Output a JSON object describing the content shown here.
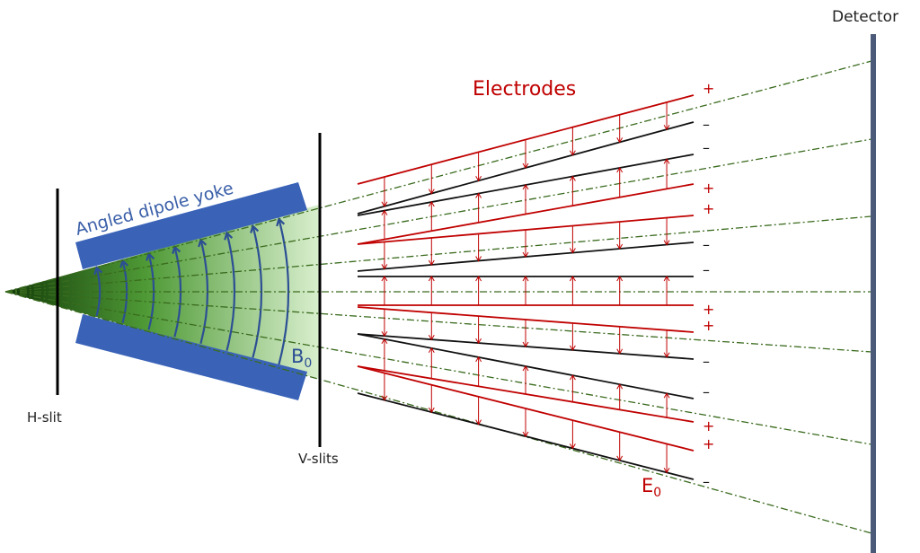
{
  "labels": {
    "detector": "Detector",
    "electrodes": "Electrodes",
    "yoke": "Angled dipole yoke",
    "h_slit": "H-slit",
    "v_slits": "V-slits",
    "b_field": "B",
    "b_sub": "0",
    "e_field": "E",
    "e_sub": "0",
    "plus": "+",
    "minus": "–"
  },
  "colors": {
    "yoke": "#3a63b8",
    "field_lines": "#2c4f94",
    "beam": "#3a6b1e",
    "electrode_red": "#c00000",
    "electrode_black": "#111111",
    "detector": "#4a5a78"
  }
}
